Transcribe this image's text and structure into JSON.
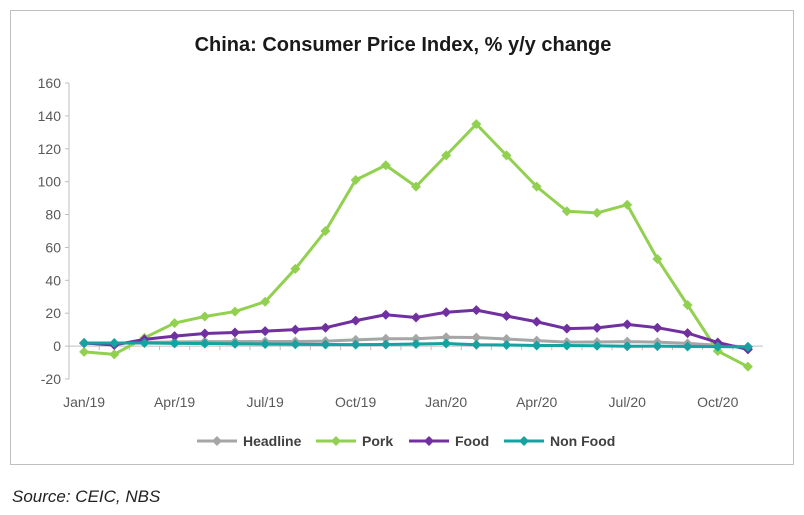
{
  "chart_data": {
    "type": "line",
    "title": "China: Consumer Price Index, % y/y change",
    "xlabel": "",
    "ylabel": "",
    "ylim": [
      -20,
      160
    ],
    "yticks": [
      -20,
      0,
      20,
      40,
      60,
      80,
      100,
      120,
      140,
      160
    ],
    "x": [
      "Jan/19",
      "Feb/19",
      "Mar/19",
      "Apr/19",
      "May/19",
      "Jun/19",
      "Jul/19",
      "Aug/19",
      "Sep/19",
      "Oct/19",
      "Nov/19",
      "Dec/19",
      "Jan/20",
      "Feb/20",
      "Mar/20",
      "Apr/20",
      "May/20",
      "Jun/20",
      "Jul/20",
      "Aug/20",
      "Sep/20",
      "Oct/20",
      "Nov/20"
    ],
    "xtick_labels": [
      "Jan/19",
      "Apr/19",
      "Jul/19",
      "Oct/19",
      "Jan/20",
      "Apr/20",
      "Jul/20",
      "Oct/20"
    ],
    "grid": false,
    "legend_position": "bottom",
    "series": [
      {
        "name": "Headline",
        "color": "#a6a6a6",
        "values": [
          1.7,
          1.5,
          2.3,
          2.5,
          2.7,
          2.7,
          2.8,
          2.8,
          3.0,
          3.8,
          4.5,
          4.5,
          5.4,
          5.2,
          4.3,
          3.3,
          2.4,
          2.5,
          2.7,
          2.4,
          1.7,
          0.5,
          -0.5
        ]
      },
      {
        "name": "Pork",
        "color": "#92d050",
        "values": [
          -3.5,
          -5.0,
          5.0,
          14.0,
          18.0,
          21.0,
          27.0,
          47.0,
          70.0,
          101.0,
          110.0,
          97.0,
          116.0,
          135.0,
          116.0,
          97.0,
          82.0,
          81.0,
          86.0,
          53.0,
          25.0,
          -3.0,
          -12.5
        ]
      },
      {
        "name": "Food",
        "color": "#7030a0",
        "values": [
          1.9,
          0.7,
          4.1,
          6.1,
          7.7,
          8.3,
          9.1,
          10.0,
          11.2,
          15.5,
          19.1,
          17.4,
          20.6,
          21.9,
          18.3,
          14.8,
          10.6,
          11.1,
          13.2,
          11.2,
          7.9,
          2.2,
          -2.0
        ]
      },
      {
        "name": "Non Food",
        "color": "#17a2a2",
        "values": [
          1.9,
          1.9,
          1.9,
          1.7,
          1.6,
          1.4,
          1.3,
          1.1,
          1.0,
          0.9,
          1.0,
          1.3,
          1.6,
          0.8,
          0.7,
          0.4,
          0.4,
          0.2,
          -0.1,
          0.0,
          -0.2,
          -0.3,
          -0.5
        ]
      }
    ]
  },
  "source": "Source: CEIC, NBS"
}
